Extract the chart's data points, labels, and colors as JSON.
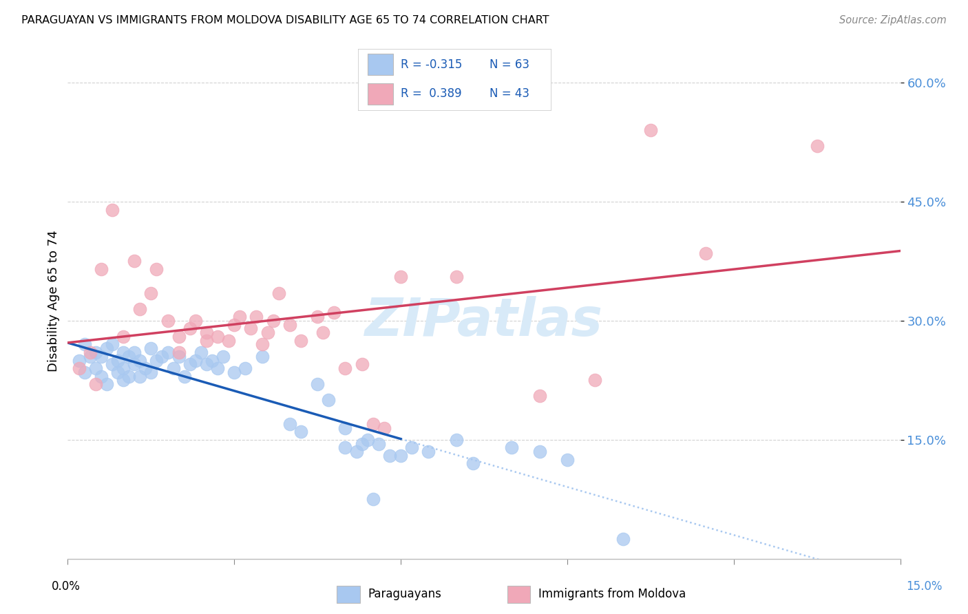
{
  "title": "PARAGUAYAN VS IMMIGRANTS FROM MOLDOVA DISABILITY AGE 65 TO 74 CORRELATION CHART",
  "source": "Source: ZipAtlas.com",
  "ylabel": "Disability Age 65 to 74",
  "blue_color": "#A8C8F0",
  "pink_color": "#F0A8B8",
  "blue_line_color": "#1A5BB5",
  "pink_line_color": "#D04060",
  "blue_dashed_color": "#A8C8F0",
  "grid_color": "#CCCCCC",
  "watermark_color": "#D8EAF8",
  "watermark_text": "ZIPatlas",
  "legend_text_color": "#1A5BB5",
  "ytick_color": "#4A8FD9",
  "xtick_right_color": "#4A8FD9",
  "paraguayan_x": [
    0.2,
    0.3,
    0.3,
    0.4,
    0.5,
    0.5,
    0.6,
    0.6,
    0.7,
    0.7,
    0.8,
    0.8,
    0.9,
    0.9,
    1.0,
    1.0,
    1.0,
    1.1,
    1.1,
    1.2,
    1.2,
    1.3,
    1.3,
    1.4,
    1.5,
    1.5,
    1.6,
    1.7,
    1.8,
    1.9,
    2.0,
    2.1,
    2.2,
    2.3,
    2.4,
    2.5,
    2.6,
    2.7,
    2.8,
    3.0,
    3.2,
    3.5,
    4.0,
    4.2,
    4.5,
    4.7,
    5.0,
    5.0,
    5.2,
    5.3,
    5.4,
    5.5,
    5.6,
    5.8,
    6.0,
    6.2,
    6.5,
    7.0,
    7.3,
    8.0,
    8.5,
    9.0,
    10.0
  ],
  "paraguayan_y": [
    25.0,
    27.0,
    23.5,
    25.5,
    26.0,
    24.0,
    25.5,
    23.0,
    26.5,
    22.0,
    27.0,
    24.5,
    25.0,
    23.5,
    26.0,
    24.0,
    22.5,
    25.5,
    23.0,
    26.0,
    24.5,
    25.0,
    23.0,
    24.0,
    26.5,
    23.5,
    25.0,
    25.5,
    26.0,
    24.0,
    25.5,
    23.0,
    24.5,
    25.0,
    26.0,
    24.5,
    25.0,
    24.0,
    25.5,
    23.5,
    24.0,
    25.5,
    17.0,
    16.0,
    22.0,
    20.0,
    14.0,
    16.5,
    13.5,
    14.5,
    15.0,
    7.5,
    14.5,
    13.0,
    13.0,
    14.0,
    13.5,
    15.0,
    12.0,
    14.0,
    13.5,
    12.5,
    2.5
  ],
  "moldova_x": [
    0.2,
    0.4,
    0.5,
    0.6,
    0.8,
    1.0,
    1.2,
    1.3,
    1.5,
    1.6,
    1.8,
    2.0,
    2.0,
    2.2,
    2.3,
    2.5,
    2.5,
    2.7,
    2.9,
    3.0,
    3.1,
    3.3,
    3.4,
    3.5,
    3.6,
    3.7,
    3.8,
    4.0,
    4.2,
    4.5,
    4.6,
    4.8,
    5.0,
    5.3,
    5.5,
    5.7,
    6.0,
    7.0,
    8.5,
    9.5,
    10.5,
    11.5,
    13.5
  ],
  "moldova_y": [
    24.0,
    26.0,
    22.0,
    36.5,
    44.0,
    28.0,
    37.5,
    31.5,
    33.5,
    36.5,
    30.0,
    28.0,
    26.0,
    29.0,
    30.0,
    27.5,
    28.5,
    28.0,
    27.5,
    29.5,
    30.5,
    29.0,
    30.5,
    27.0,
    28.5,
    30.0,
    33.5,
    29.5,
    27.5,
    30.5,
    28.5,
    31.0,
    24.0,
    24.5,
    17.0,
    16.5,
    35.5,
    35.5,
    20.5,
    22.5,
    54.0,
    38.5,
    52.0
  ]
}
